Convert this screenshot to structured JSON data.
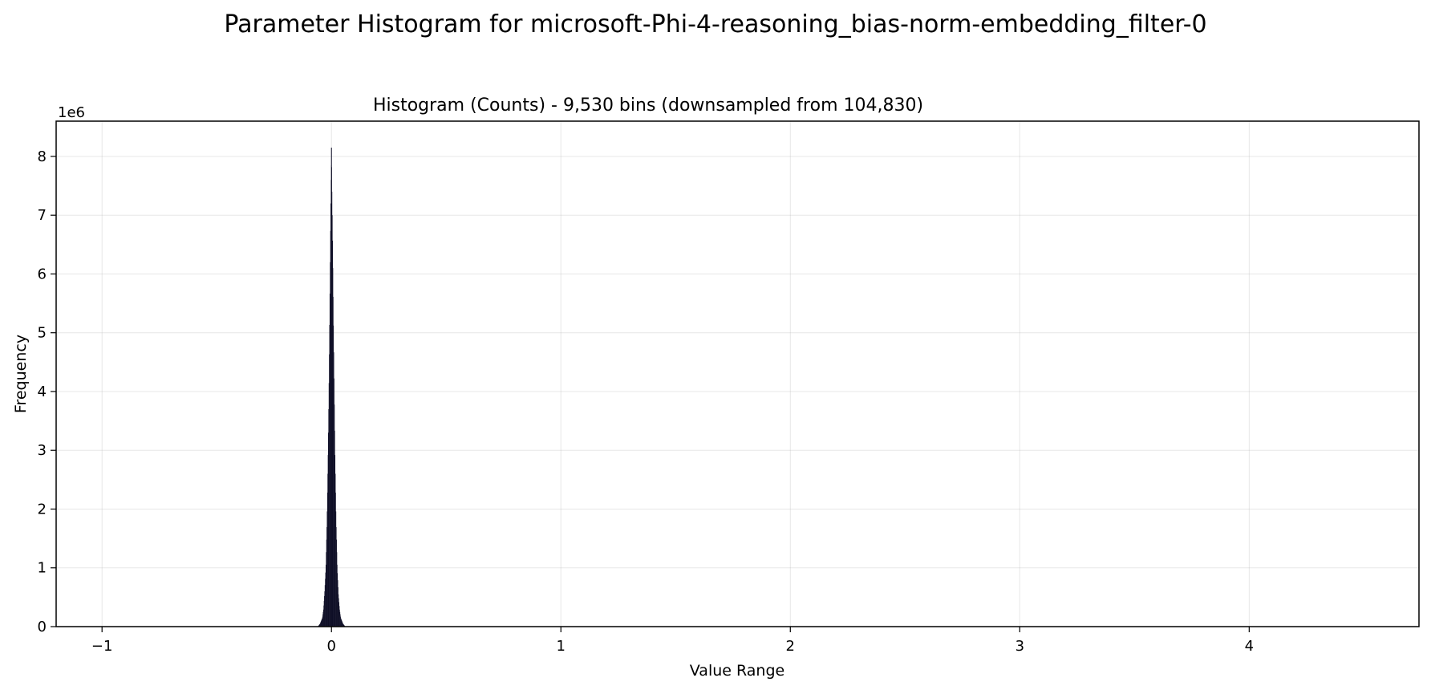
{
  "chart_data": {
    "type": "bar",
    "suptitle": "Parameter Histogram for microsoft-Phi-4-reasoning_bias-norm-embedding_filter-0",
    "title": "Histogram (Counts) - 9,530 bins (downsampled from 104,830)",
    "xlabel": "Value Range",
    "ylabel": "Frequency",
    "y_offset_label": "1e6",
    "xlim": [
      -1.2,
      4.74
    ],
    "ylim": [
      0,
      8.6
    ],
    "y_scale_factor": 1000000,
    "x_ticks": [
      -1,
      0,
      1,
      2,
      3,
      4
    ],
    "x_tick_labels": [
      "−1",
      "0",
      "1",
      "2",
      "3",
      "4"
    ],
    "y_ticks": [
      0,
      1,
      2,
      3,
      4,
      5,
      6,
      7,
      8
    ],
    "y_tick_labels": [
      "0",
      "1",
      "2",
      "3",
      "4",
      "5",
      "6",
      "7",
      "8"
    ],
    "grid": true,
    "bar_color": "#0c0c24",
    "distribution": {
      "center": 0.0,
      "peak": 8.15,
      "x": [
        -0.06,
        -0.05,
        -0.04,
        -0.035,
        -0.03,
        -0.025,
        -0.02,
        -0.015,
        -0.012,
        -0.009,
        -0.006,
        -0.004,
        -0.002,
        -0.001,
        0.0,
        0.001,
        0.002,
        0.004,
        0.006,
        0.009,
        0.012,
        0.015,
        0.02,
        0.025,
        0.03,
        0.035,
        0.04,
        0.05,
        0.06
      ],
      "values": [
        0.0,
        0.05,
        0.15,
        0.3,
        0.6,
        1.0,
        1.8,
        3.0,
        3.9,
        5.0,
        6.2,
        7.0,
        7.6,
        7.7,
        8.15,
        7.65,
        7.4,
        6.8,
        6.1,
        5.0,
        4.0,
        3.0,
        1.8,
        1.0,
        0.55,
        0.3,
        0.15,
        0.05,
        0.0
      ]
    }
  }
}
